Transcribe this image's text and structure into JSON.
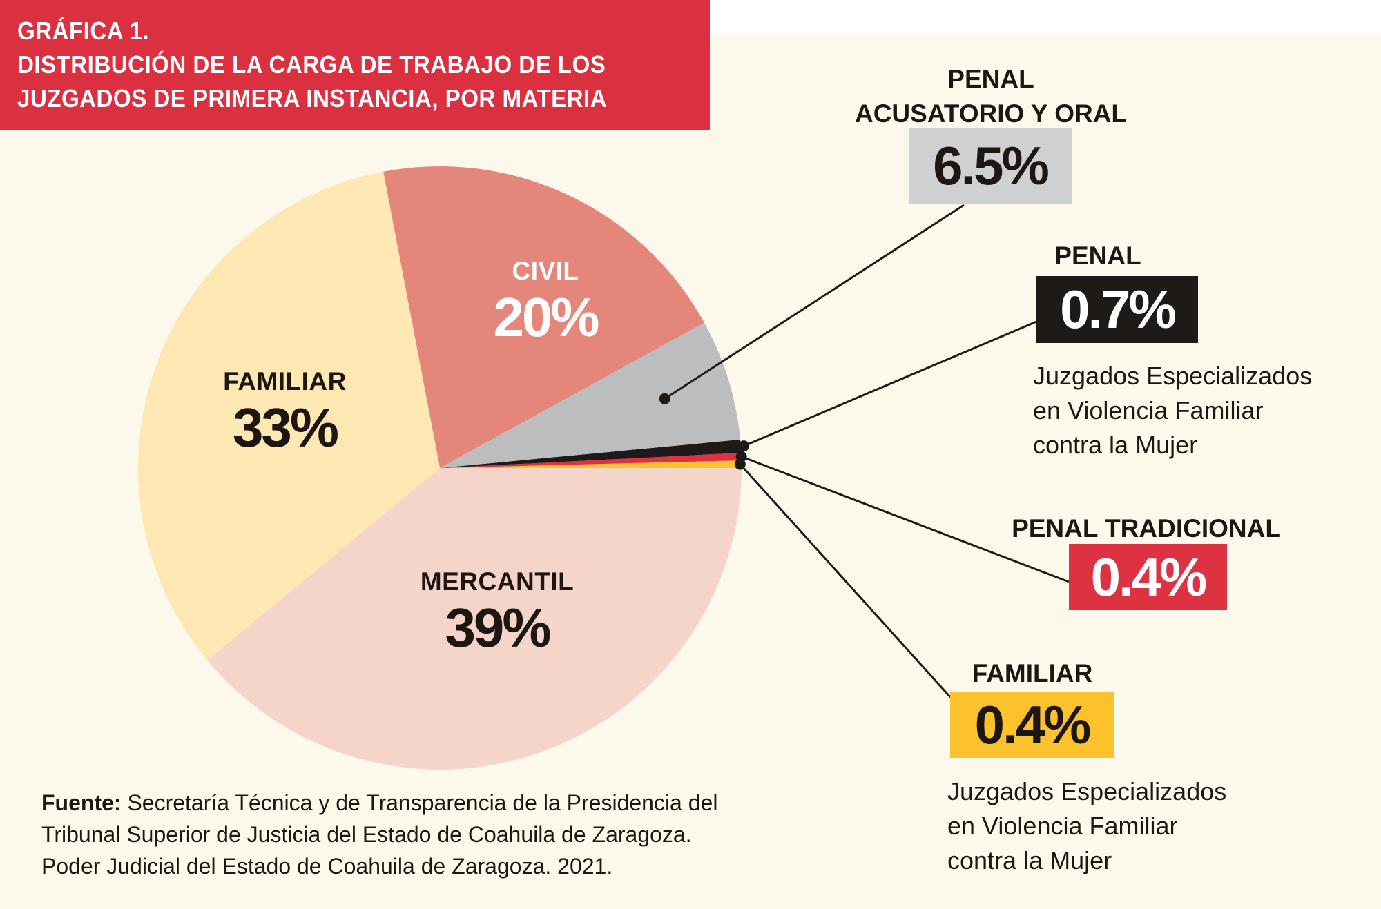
{
  "title": {
    "line1": "GRÁFICA 1.",
    "line2": "DISTRIBUCIÓN DE LA CARGA DE TRABAJO DE LOS",
    "line3": "JUZGADOS DE PRIMERA INSTANCIA, POR MATERIA"
  },
  "colors": {
    "title_bg": "#da3040",
    "background": "#fdf8ec",
    "civil": "#e5867b",
    "familiar": "#fde8b4",
    "mercantil": "#f5d5ca",
    "penal_acusatorio": "#bcbdbf",
    "penal": "#1e1a18",
    "penal_tradicional": "#dc3242",
    "familiar_especializado": "#fbc22c"
  },
  "chart_data": {
    "type": "pie",
    "title": "DISTRIBUCIÓN DE LA CARGA DE TRABAJO DE LOS JUZGADOS DE PRIMERA INSTANCIA, POR MATERIA",
    "start": "3 o'clock, counter-clockwise",
    "slices": [
      {
        "key": "familiar_esp",
        "label": "FAMILIAR",
        "value": 0.4,
        "display": "0.4%",
        "color": "#fbc22c",
        "note": "Juzgados Especializados en Violencia Familiar contra la Mujer"
      },
      {
        "key": "penal_trad",
        "label": "PENAL TRADICIONAL",
        "value": 0.4,
        "display": "0.4%",
        "color": "#dc3242"
      },
      {
        "key": "penal",
        "label": "PENAL",
        "value": 0.7,
        "display": "0.7%",
        "color": "#1e1a18",
        "note": "Juzgados Especializados en Violencia Familiar contra la Mujer"
      },
      {
        "key": "penal_acus",
        "label": "PENAL ACUSATORIO Y ORAL",
        "value": 6.5,
        "display": "6.5%",
        "color": "#bcbdbf"
      },
      {
        "key": "civil",
        "label": "CIVIL",
        "value": 20,
        "display": "20%",
        "color": "#e5867b"
      },
      {
        "key": "familiar",
        "label": "FAMILIAR",
        "value": 33,
        "display": "33%",
        "color": "#fde8b4"
      },
      {
        "key": "mercantil",
        "label": "MERCANTIL",
        "value": 39,
        "display": "39%",
        "color": "#f5d5ca"
      }
    ]
  },
  "labels": {
    "civil": {
      "name": "CIVIL",
      "pct": "20%"
    },
    "familiar": {
      "name": "FAMILIAR",
      "pct": "33%"
    },
    "mercantil": {
      "name": "MERCANTIL",
      "pct": "39%"
    }
  },
  "callouts": {
    "penal_acus": {
      "name_line1": "PENAL",
      "name_line2": "ACUSATORIO Y ORAL",
      "pct": "6.5%"
    },
    "penal": {
      "name": "PENAL",
      "pct": "0.7%",
      "desc": [
        "Juzgados Especializados",
        "en Violencia Familiar",
        "contra la Mujer"
      ]
    },
    "penal_trad": {
      "name": "PENAL TRADICIONAL",
      "pct": "0.4%"
    },
    "familiar_esp": {
      "name": "FAMILIAR",
      "pct": "0.4%",
      "desc": [
        "Juzgados Especializados",
        "en Violencia Familiar",
        "contra la Mujer"
      ]
    }
  },
  "source": {
    "label": "Fuente:",
    "line1": "Secretaría Técnica y de Transparencia de la Presidencia del",
    "line2": "Tribunal Superior de Justicia del Estado de Coahuila de Zaragoza.",
    "line3": "Poder Judicial del Estado de Coahuila de Zaragoza. 2021."
  }
}
